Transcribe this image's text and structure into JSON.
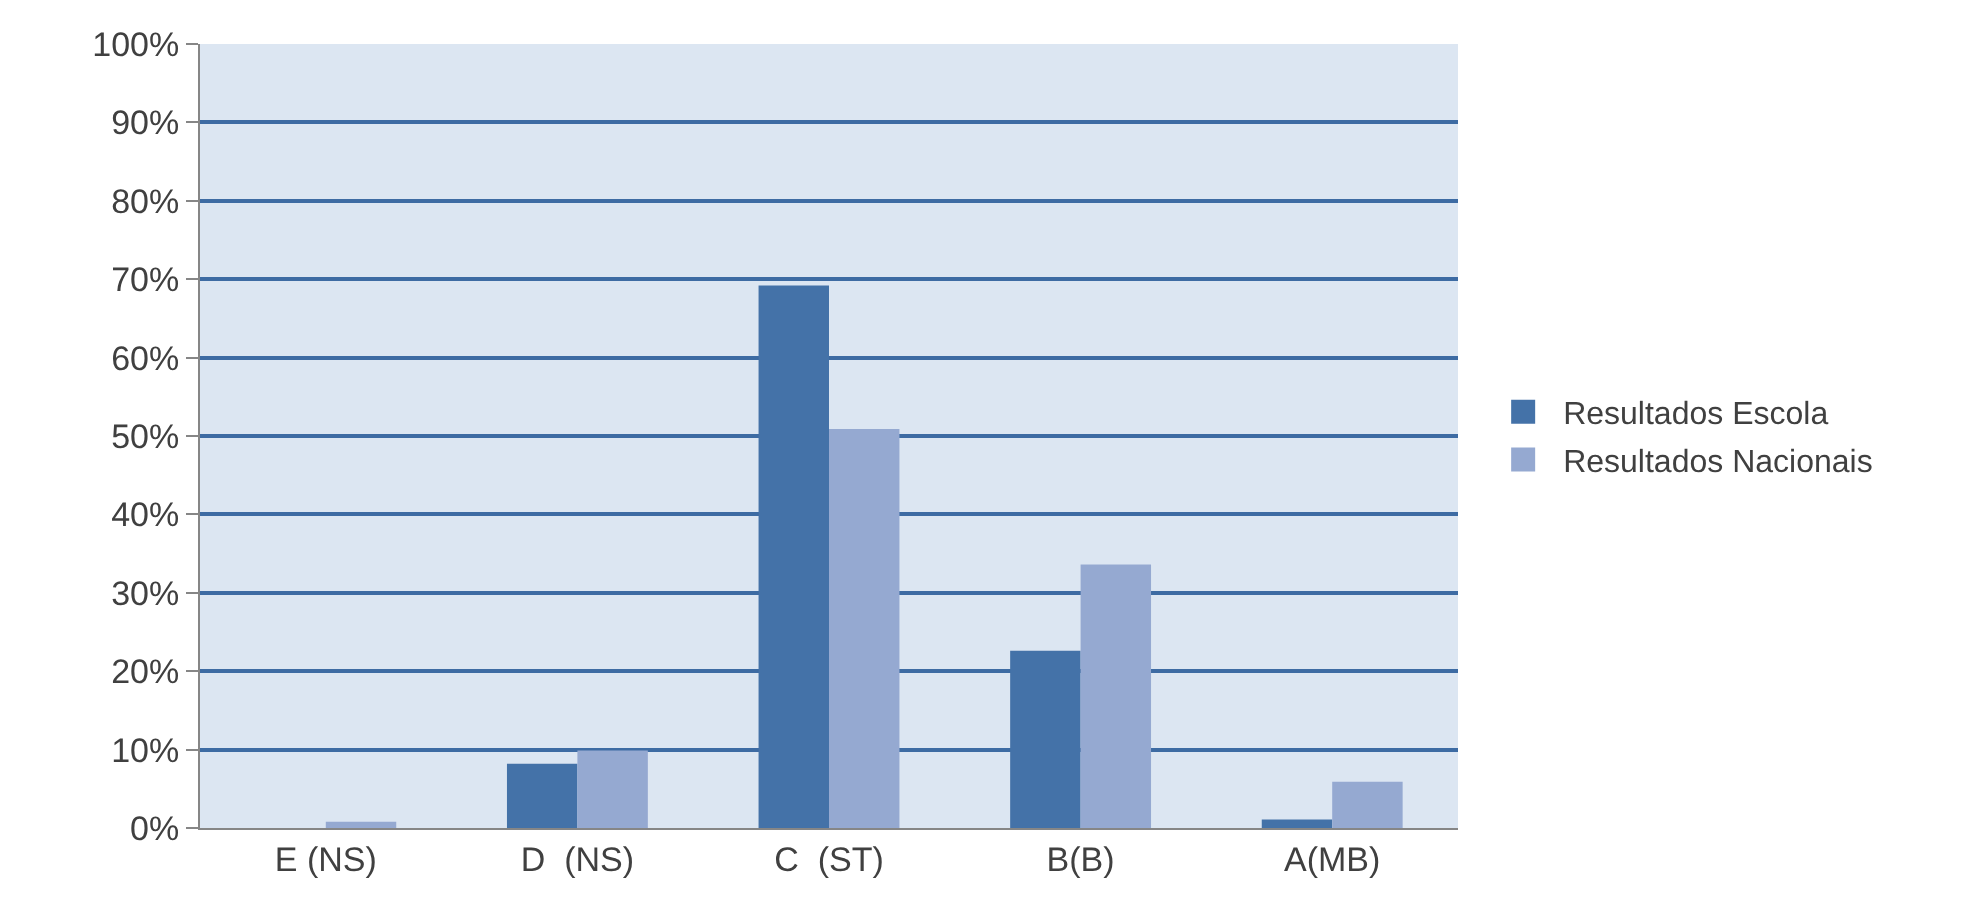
{
  "chart_data": {
    "type": "bar",
    "categories": [
      "E (NS)",
      "D  (NS)",
      "C  (ST)",
      "B(B)",
      "A(MB)"
    ],
    "series": [
      {
        "name": "Resultados Escola",
        "color": "#4472a8",
        "values": [
          0,
          8.2,
          69.2,
          22.6,
          1.1
        ]
      },
      {
        "name": "Resultados Nacionais",
        "color": "#95a9d1",
        "values": [
          0.8,
          9.9,
          50.9,
          33.6,
          5.9
        ]
      }
    ],
    "ylim": [
      0,
      100
    ],
    "yticks": [
      {
        "value": 0,
        "label": "0%"
      },
      {
        "value": 10,
        "label": "10%"
      },
      {
        "value": 20,
        "label": "20%"
      },
      {
        "value": 30,
        "label": "30%"
      },
      {
        "value": 40,
        "label": "40%"
      },
      {
        "value": 50,
        "label": "50%"
      },
      {
        "value": 60,
        "label": "60%"
      },
      {
        "value": 70,
        "label": "70%"
      },
      {
        "value": 80,
        "label": "80%"
      },
      {
        "value": 90,
        "label": "90%"
      },
      {
        "value": 100,
        "label": "100%"
      }
    ],
    "grid": "y",
    "legend": "right"
  }
}
